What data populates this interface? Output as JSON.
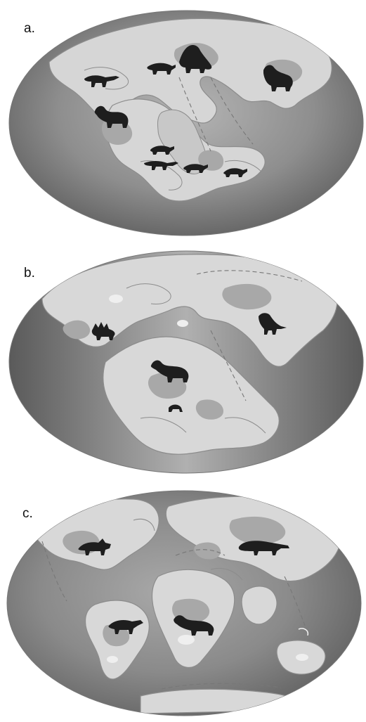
{
  "panels": [
    {
      "label": "a.",
      "kind": "paleogeographic-map"
    },
    {
      "label": "b.",
      "kind": "paleogeographic-map"
    },
    {
      "label": "c.",
      "kind": "paleogeographic-map"
    }
  ],
  "colors": {
    "ocean_dark": "#6e6e6e",
    "ocean_light": "#b8b8b8",
    "land": "#d9d9d9",
    "land_highland": "#a3a3a3",
    "coast_line": "#8c8c8c",
    "silhouette": "#1e1e1e"
  },
  "icons": [
    "sauropod-silhouette-icon",
    "theropod-silhouette-icon",
    "quadruped-silhouette-icon",
    "ceratopsian-silhouette-icon",
    "stegosaur-silhouette-icon"
  ]
}
